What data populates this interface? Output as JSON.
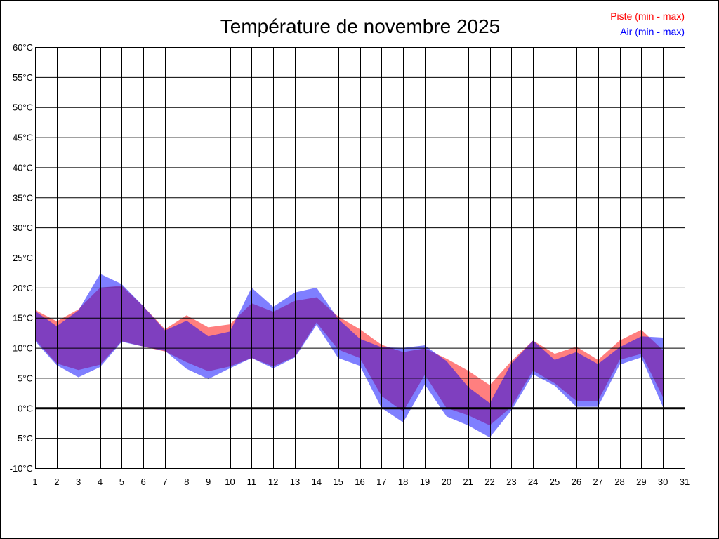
{
  "chart_data": {
    "type": "area",
    "title": "Température de novembre 2025",
    "xlabel": "",
    "ylabel": "",
    "y_unit": "°C",
    "xlim": [
      1,
      31
    ],
    "ylim": [
      -10,
      60
    ],
    "y_ticks": [
      -10,
      -5,
      0,
      5,
      10,
      15,
      20,
      25,
      30,
      35,
      40,
      45,
      50,
      55,
      60
    ],
    "x_ticks": [
      1,
      2,
      3,
      4,
      5,
      6,
      7,
      8,
      9,
      10,
      11,
      12,
      13,
      14,
      15,
      16,
      17,
      18,
      19,
      20,
      21,
      22,
      23,
      24,
      25,
      26,
      27,
      28,
      29,
      30,
      31
    ],
    "grid": true,
    "legend_placement": "top-right",
    "x": [
      1,
      2,
      3,
      4,
      5,
      6,
      7,
      8,
      9,
      10,
      11,
      12,
      13,
      14,
      15,
      16,
      17,
      18,
      19,
      20,
      21,
      22,
      23,
      24,
      25,
      26,
      27,
      28,
      29,
      30
    ],
    "series": [
      {
        "name": "Piste (min - max)",
        "color": "#ff0000",
        "max": [
          16.3,
          14.4,
          16.4,
          20.0,
          20.3,
          16.9,
          13.1,
          15.4,
          13.4,
          13.9,
          17.4,
          16.0,
          17.8,
          18.4,
          15.2,
          13.1,
          10.5,
          9.3,
          9.9,
          8.2,
          6.2,
          3.8,
          7.8,
          11.2,
          9.0,
          10.2,
          8.0,
          11.2,
          13.0,
          9.6
        ],
        "min": [
          11.3,
          7.4,
          6.3,
          7.2,
          11.1,
          10.2,
          9.4,
          7.6,
          6.1,
          6.9,
          8.3,
          6.9,
          8.5,
          14.2,
          9.7,
          8.3,
          2.0,
          -0.6,
          5.5,
          0.0,
          -1.2,
          -2.9,
          0.2,
          6.2,
          4.1,
          1.2,
          1.2,
          8.0,
          9.0,
          1.8
        ]
      },
      {
        "name": "Air (min - max)",
        "color": "#0000ff",
        "max": [
          16.1,
          13.6,
          16.2,
          22.3,
          20.6,
          16.9,
          12.9,
          14.5,
          11.9,
          12.7,
          20.0,
          16.8,
          19.2,
          20.0,
          14.8,
          11.5,
          10.1,
          10.0,
          10.4,
          7.8,
          3.5,
          0.8,
          7.4,
          11.2,
          8.0,
          9.3,
          7.3,
          10.1,
          11.9,
          11.7
        ],
        "min": [
          11.1,
          7.1,
          5.1,
          6.8,
          11.0,
          10.2,
          9.5,
          6.5,
          4.8,
          6.6,
          8.3,
          6.6,
          8.4,
          13.8,
          8.3,
          7.0,
          0.0,
          -2.4,
          3.9,
          -1.4,
          -2.9,
          -4.9,
          -0.4,
          5.6,
          3.7,
          0.2,
          0.2,
          7.2,
          8.4,
          0.2
        ]
      }
    ]
  }
}
